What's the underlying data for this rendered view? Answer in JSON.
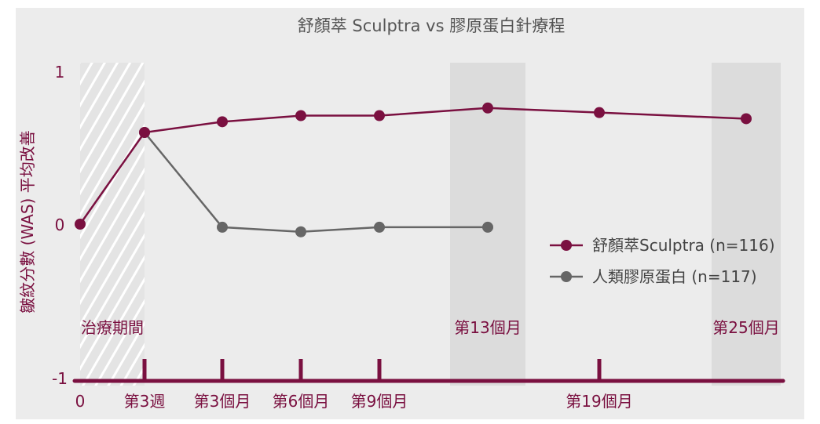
{
  "chart_data": {
    "type": "line",
    "title": "舒顏萃 Sculptra vs 膠原蛋白針療程",
    "ylabel": "皺紋分數 (WAS) 平均改善",
    "ylim": [
      -1,
      1
    ],
    "y_ticks": [
      "1",
      "0",
      "-1"
    ],
    "x_ticks": [
      "0",
      "第3週",
      "第3個月",
      "第6個月",
      "第9個月",
      "第19個月"
    ],
    "period_labels": [
      "治療期間",
      "第13個月",
      "第25個月"
    ],
    "series": [
      {
        "name": "舒顏萃Sculptra (n=116)",
        "color": "#7a1040",
        "points": [
          {
            "x": "0",
            "y": 0.0
          },
          {
            "x": "第3週",
            "y": 0.6
          },
          {
            "x": "第3個月",
            "y": 0.67
          },
          {
            "x": "第6個月",
            "y": 0.71
          },
          {
            "x": "第9個月",
            "y": 0.71
          },
          {
            "x": "第13個月",
            "y": 0.76
          },
          {
            "x": "第19個月",
            "y": 0.73
          },
          {
            "x": "第25個月",
            "y": 0.69
          }
        ]
      },
      {
        "name": "人類膠原蛋白 (n=117)",
        "color": "#666666",
        "points": [
          {
            "x": "第3週",
            "y": 0.6
          },
          {
            "x": "第3個月",
            "y": -0.02
          },
          {
            "x": "第6個月",
            "y": -0.05
          },
          {
            "x": "第9個月",
            "y": -0.02
          },
          {
            "x": "第13個月",
            "y": -0.02
          }
        ]
      }
    ],
    "legend_position": "right",
    "grid": false,
    "background": "#ececec"
  }
}
